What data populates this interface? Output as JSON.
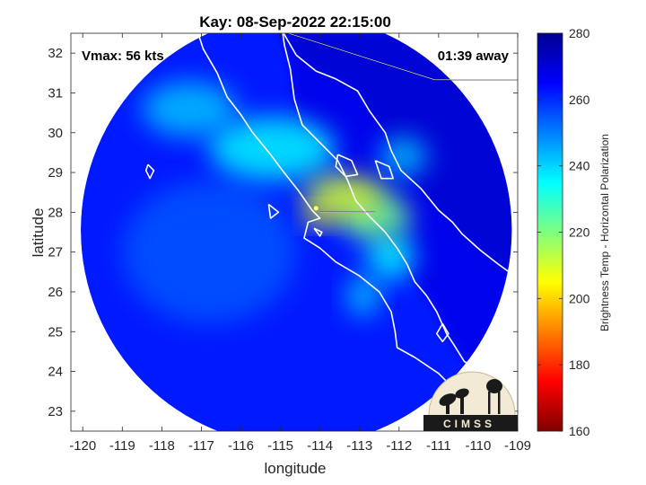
{
  "chart_data": {
    "type": "heatmap",
    "title": "Kay: 08-Sep-2022 22:15:00",
    "xlabel": "longitude",
    "ylabel": "latitude",
    "xlim": [
      -120.3,
      -109
    ],
    "ylim": [
      22.5,
      32.5
    ],
    "xticks": [
      -120,
      -119,
      -118,
      -117,
      -116,
      -115,
      -114,
      -113,
      -112,
      -111,
      -110,
      -109
    ],
    "yticks": [
      23,
      24,
      25,
      26,
      27,
      28,
      29,
      30,
      31,
      32
    ],
    "annotations": {
      "vmax": "Vmax: 56 kts",
      "time_offset": "01:39 away"
    },
    "colorbar": {
      "label": "Brightness Temp - Horizontal Polarization",
      "range": [
        160,
        280
      ],
      "ticks": [
        160,
        180,
        200,
        220,
        240,
        260,
        280
      ],
      "colormap": "jet"
    },
    "swath": {
      "center": [
        -114.6,
        27.55
      ],
      "radius_deg": 5.45
    },
    "storm_center": [
      -114.1,
      28.1
    ],
    "field_blobs": [
      {
        "lon": -113.4,
        "lat": 28.4,
        "sx": 1.0,
        "sy": 0.55,
        "value": 210
      },
      {
        "lon": -114.0,
        "lat": 27.9,
        "sx": 0.35,
        "sy": 0.25,
        "value": 205
      },
      {
        "lon": -112.6,
        "lat": 27.9,
        "sx": 0.9,
        "sy": 0.6,
        "value": 222
      },
      {
        "lon": -115.2,
        "lat": 29.6,
        "sx": 1.6,
        "sy": 0.8,
        "value": 236
      },
      {
        "lon": -117.3,
        "lat": 30.6,
        "sx": 1.2,
        "sy": 0.7,
        "value": 242
      },
      {
        "lon": -112.2,
        "lat": 26.9,
        "sx": 0.6,
        "sy": 0.6,
        "value": 236
      },
      {
        "lon": -112.9,
        "lat": 25.9,
        "sx": 0.4,
        "sy": 0.5,
        "value": 240
      },
      {
        "lon": -111.9,
        "lat": 29.4,
        "sx": 0.6,
        "sy": 0.5,
        "value": 242
      },
      {
        "lon": -116.8,
        "lat": 27.0,
        "sx": 2.2,
        "sy": 1.8,
        "value": 255
      }
    ],
    "background_value": 262,
    "gulf_value": 268,
    "coastlines": [
      [
        [
          -117.1,
          32.55
        ],
        [
          -116.95,
          32.1
        ],
        [
          -116.6,
          31.5
        ],
        [
          -116.35,
          30.9
        ],
        [
          -116.0,
          30.45
        ],
        [
          -115.7,
          30.0
        ],
        [
          -115.25,
          29.45
        ],
        [
          -114.95,
          29.05
        ],
        [
          -114.55,
          28.55
        ],
        [
          -114.2,
          28.05
        ],
        [
          -114.0,
          27.85
        ],
        [
          -114.3,
          27.75
        ],
        [
          -114.4,
          27.35
        ],
        [
          -114.0,
          27.1
        ],
        [
          -113.6,
          26.75
        ],
        [
          -113.0,
          26.4
        ],
        [
          -112.5,
          26.0
        ],
        [
          -112.2,
          25.5
        ],
        [
          -112.1,
          25.0
        ],
        [
          -112.05,
          24.6
        ],
        [
          -111.6,
          24.35
        ],
        [
          -111.0,
          23.95
        ],
        [
          -110.4,
          23.35
        ],
        [
          -109.95,
          22.9
        ]
      ],
      [
        [
          -109.95,
          22.9
        ],
        [
          -109.5,
          23.2
        ],
        [
          -109.45,
          23.55
        ],
        [
          -110.0,
          24.05
        ],
        [
          -110.35,
          24.25
        ],
        [
          -110.6,
          24.65
        ],
        [
          -110.8,
          24.95
        ],
        [
          -111.05,
          25.5
        ],
        [
          -111.3,
          25.9
        ],
        [
          -111.6,
          26.25
        ],
        [
          -111.8,
          26.7
        ],
        [
          -112.05,
          27.1
        ],
        [
          -112.35,
          27.5
        ],
        [
          -112.75,
          27.9
        ],
        [
          -113.1,
          28.3
        ],
        [
          -113.3,
          28.8
        ],
        [
          -113.55,
          29.3
        ],
        [
          -114.0,
          29.75
        ],
        [
          -114.45,
          30.2
        ],
        [
          -114.65,
          30.85
        ],
        [
          -114.75,
          31.6
        ],
        [
          -114.9,
          32.2
        ],
        [
          -114.95,
          32.55
        ]
      ],
      [
        [
          -114.95,
          32.55
        ],
        [
          -114.6,
          31.95
        ],
        [
          -114.1,
          31.55
        ],
        [
          -113.6,
          31.35
        ],
        [
          -113.05,
          31.05
        ],
        [
          -112.75,
          30.55
        ],
        [
          -112.35,
          30.0
        ],
        [
          -112.2,
          29.55
        ],
        [
          -111.95,
          29.05
        ],
        [
          -111.45,
          28.6
        ],
        [
          -111.0,
          28.05
        ],
        [
          -110.65,
          27.75
        ],
        [
          -110.4,
          27.45
        ],
        [
          -109.95,
          27.05
        ],
        [
          -109.5,
          26.7
        ],
        [
          -109.15,
          26.45
        ]
      ],
      [
        [
          -113.55,
          29.45
        ],
        [
          -113.2,
          29.3
        ],
        [
          -113.05,
          28.95
        ],
        [
          -113.35,
          28.9
        ],
        [
          -113.6,
          29.15
        ],
        [
          -113.55,
          29.45
        ]
      ],
      [
        [
          -112.6,
          29.3
        ],
        [
          -112.25,
          29.15
        ],
        [
          -112.15,
          28.85
        ],
        [
          -112.45,
          28.85
        ],
        [
          -112.6,
          29.3
        ]
      ],
      [
        [
          -118.35,
          29.2
        ],
        [
          -118.2,
          29.05
        ],
        [
          -118.3,
          28.85
        ],
        [
          -118.4,
          29.05
        ],
        [
          -118.35,
          29.2
        ]
      ],
      [
        [
          -115.3,
          28.2
        ],
        [
          -115.05,
          28.0
        ],
        [
          -115.25,
          27.85
        ],
        [
          -115.3,
          28.2
        ]
      ],
      [
        [
          -110.9,
          25.2
        ],
        [
          -110.75,
          24.95
        ],
        [
          -110.9,
          24.75
        ],
        [
          -111.05,
          24.95
        ],
        [
          -110.9,
          25.2
        ]
      ],
      [
        [
          -114.15,
          27.6
        ],
        [
          -113.95,
          27.5
        ],
        [
          -114.0,
          27.4
        ],
        [
          -114.15,
          27.6
        ]
      ]
    ],
    "borders": [
      [
        [
          -117.1,
          32.55
        ],
        [
          -114.75,
          32.55
        ],
        [
          -114.8,
          32.5
        ],
        [
          -111.1,
          31.33
        ],
        [
          -109.0,
          31.33
        ]
      ],
      [
        [
          -114.0,
          28.0
        ],
        [
          -112.6,
          28.0
        ]
      ]
    ]
  },
  "logo": {
    "text": "CIMSS"
  }
}
